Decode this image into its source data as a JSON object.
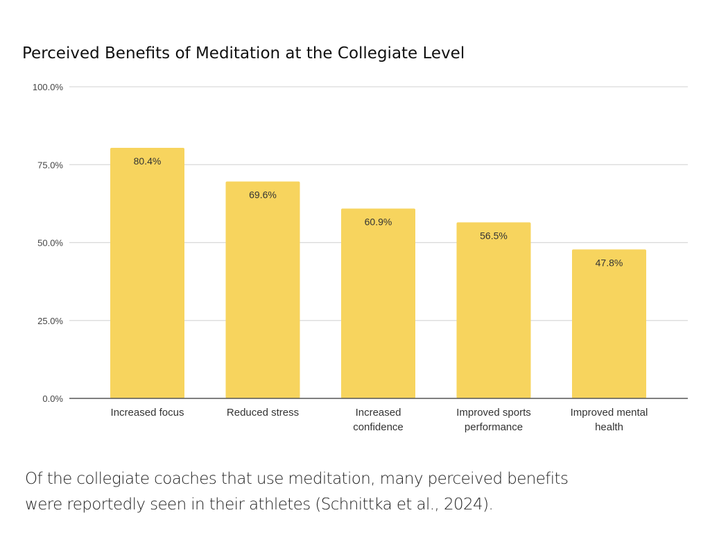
{
  "chart_data": {
    "type": "bar",
    "title": "Perceived Benefits of Meditation at the Collegiate Level",
    "xlabel": "",
    "ylabel": "",
    "categories": [
      [
        "Increased focus"
      ],
      [
        "Reduced stress"
      ],
      [
        "Increased",
        "confidence"
      ],
      [
        "Improved sports",
        "performance"
      ],
      [
        "Improved mental",
        "health"
      ]
    ],
    "values": [
      80.4,
      69.6,
      60.9,
      56.5,
      47.8
    ],
    "data_labels": [
      "80.4%",
      "69.6%",
      "60.9%",
      "56.5%",
      "47.8%"
    ],
    "ylim": [
      0,
      100
    ],
    "yticks": [
      0,
      25,
      50,
      75,
      100
    ],
    "ytick_labels": [
      "0.0%",
      "25.0%",
      "50.0%",
      "75.0%",
      "100.0%"
    ],
    "grid": true,
    "legend": "none",
    "bar_color": "#f7d45e"
  },
  "caption": {
    "line1": "Of the collegiate coaches that use meditation, many perceived benefits",
    "line2": "were reportedly seen in their athletes (Schnittka et al., 2024)."
  }
}
